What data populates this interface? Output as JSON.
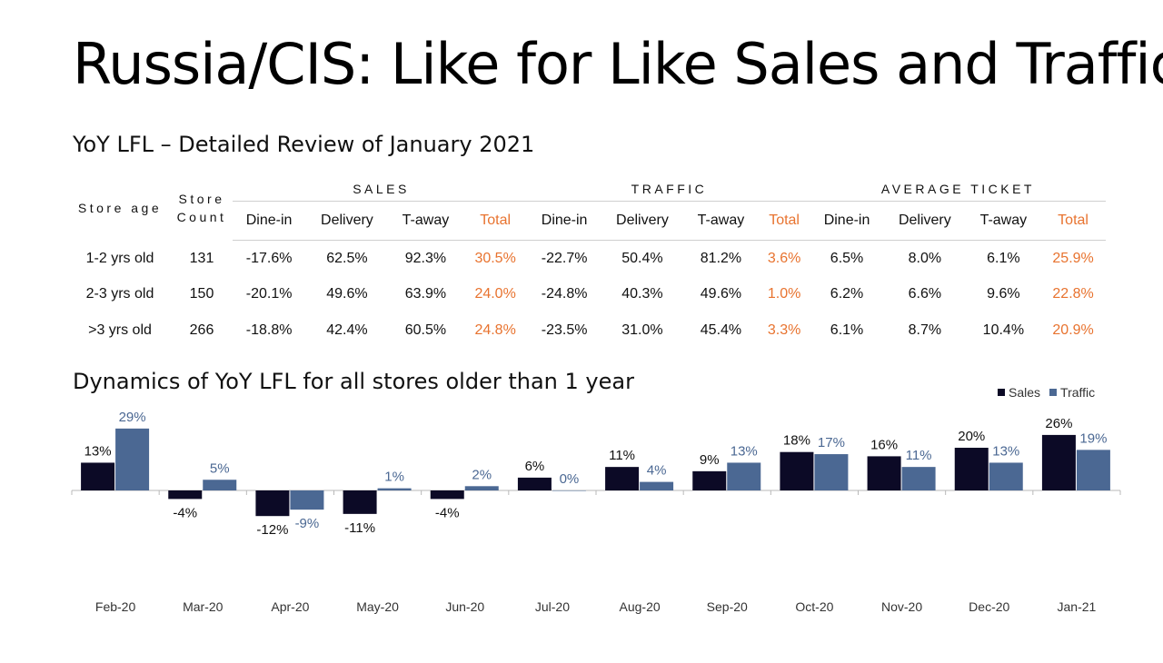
{
  "title": "Russia/CIS: Like for Like Sales and Traffic",
  "subtitle": "YoY LFL – Detailed Review of January 2021",
  "table": {
    "header_store_age": "Store age",
    "header_store_count_line1": "Store",
    "header_store_count_line2": "Count",
    "groups": [
      "SALES",
      "TRAFFIC",
      "AVERAGE TICKET"
    ],
    "sub_headers": [
      "Dine-in",
      "Delivery",
      "T-away",
      "Total",
      "Dine-in",
      "Delivery",
      "T-away",
      "Total",
      "Dine-in",
      "Delivery",
      "T-away",
      "Total"
    ],
    "rows": [
      {
        "age": "1-2 yrs old",
        "count": "131",
        "values": [
          "-17.6%",
          "62.5%",
          "92.3%",
          "30.5%",
          "-22.7%",
          "50.4%",
          "81.2%",
          "3.6%",
          "6.5%",
          "8.0%",
          "6.1%",
          "25.9%"
        ]
      },
      {
        "age": "2-3 yrs old",
        "count": "150",
        "values": [
          "-20.1%",
          "49.6%",
          "63.9%",
          "24.0%",
          "-24.8%",
          "40.3%",
          "49.6%",
          "1.0%",
          "6.2%",
          "6.6%",
          "9.6%",
          "22.8%"
        ]
      },
      {
        "age": ">3 yrs old",
        "count": "266",
        "values": [
          "-18.8%",
          "42.4%",
          "60.5%",
          "24.8%",
          "-23.5%",
          "31.0%",
          "45.4%",
          "3.3%",
          "6.1%",
          "8.7%",
          "10.4%",
          "20.9%"
        ]
      }
    ],
    "total_color": "#e8732f"
  },
  "chart_title": "Dynamics of YoY LFL for all stores older than 1 year",
  "chart_data": {
    "type": "bar",
    "categories": [
      "Feb-20",
      "Mar-20",
      "Apr-20",
      "May-20",
      "Jun-20",
      "Jul-20",
      "Aug-20",
      "Sep-20",
      "Oct-20",
      "Nov-20",
      "Dec-20",
      "Jan-21"
    ],
    "series": [
      {
        "name": "Sales",
        "color": "#0c0a26",
        "label_color": "#111111",
        "values": [
          13,
          -4,
          -12,
          -11,
          -4,
          6,
          11,
          9,
          18,
          16,
          20,
          26
        ]
      },
      {
        "name": "Traffic",
        "color": "#4b6893",
        "label_color": "#4b6893",
        "values": [
          29,
          5,
          -9,
          1,
          2,
          0,
          4,
          13,
          17,
          11,
          13,
          19
        ]
      }
    ],
    "value_suffix": "%",
    "legend_position": "top-right",
    "grid": false
  }
}
